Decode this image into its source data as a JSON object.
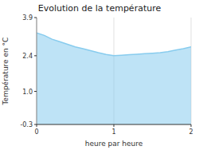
{
  "chart_data": {
    "type": "area",
    "title": "Evolution de la température",
    "xlabel": "heure par heure",
    "ylabel": "Température en °C",
    "x": [
      0,
      0.1,
      0.2,
      0.3,
      0.4,
      0.5,
      0.6,
      0.7,
      0.8,
      0.9,
      1.0,
      1.05,
      1.1,
      1.2,
      1.3,
      1.4,
      1.5,
      1.6,
      1.7,
      1.8,
      1.9,
      2.0
    ],
    "values": [
      3.3,
      3.2,
      3.05,
      2.95,
      2.85,
      2.75,
      2.68,
      2.6,
      2.52,
      2.45,
      2.4,
      2.41,
      2.42,
      2.44,
      2.46,
      2.48,
      2.5,
      2.52,
      2.56,
      2.62,
      2.68,
      2.75
    ],
    "color": "#88ccee",
    "xlim": [
      0,
      2
    ],
    "ylim": [
      -0.3,
      3.9
    ],
    "xticks": [
      0,
      1,
      2
    ],
    "yticks": [
      -0.3,
      {
        "value": 1.0,
        "label": "1.0"
      },
      2.4,
      3.9
    ],
    "grid": "x"
  }
}
